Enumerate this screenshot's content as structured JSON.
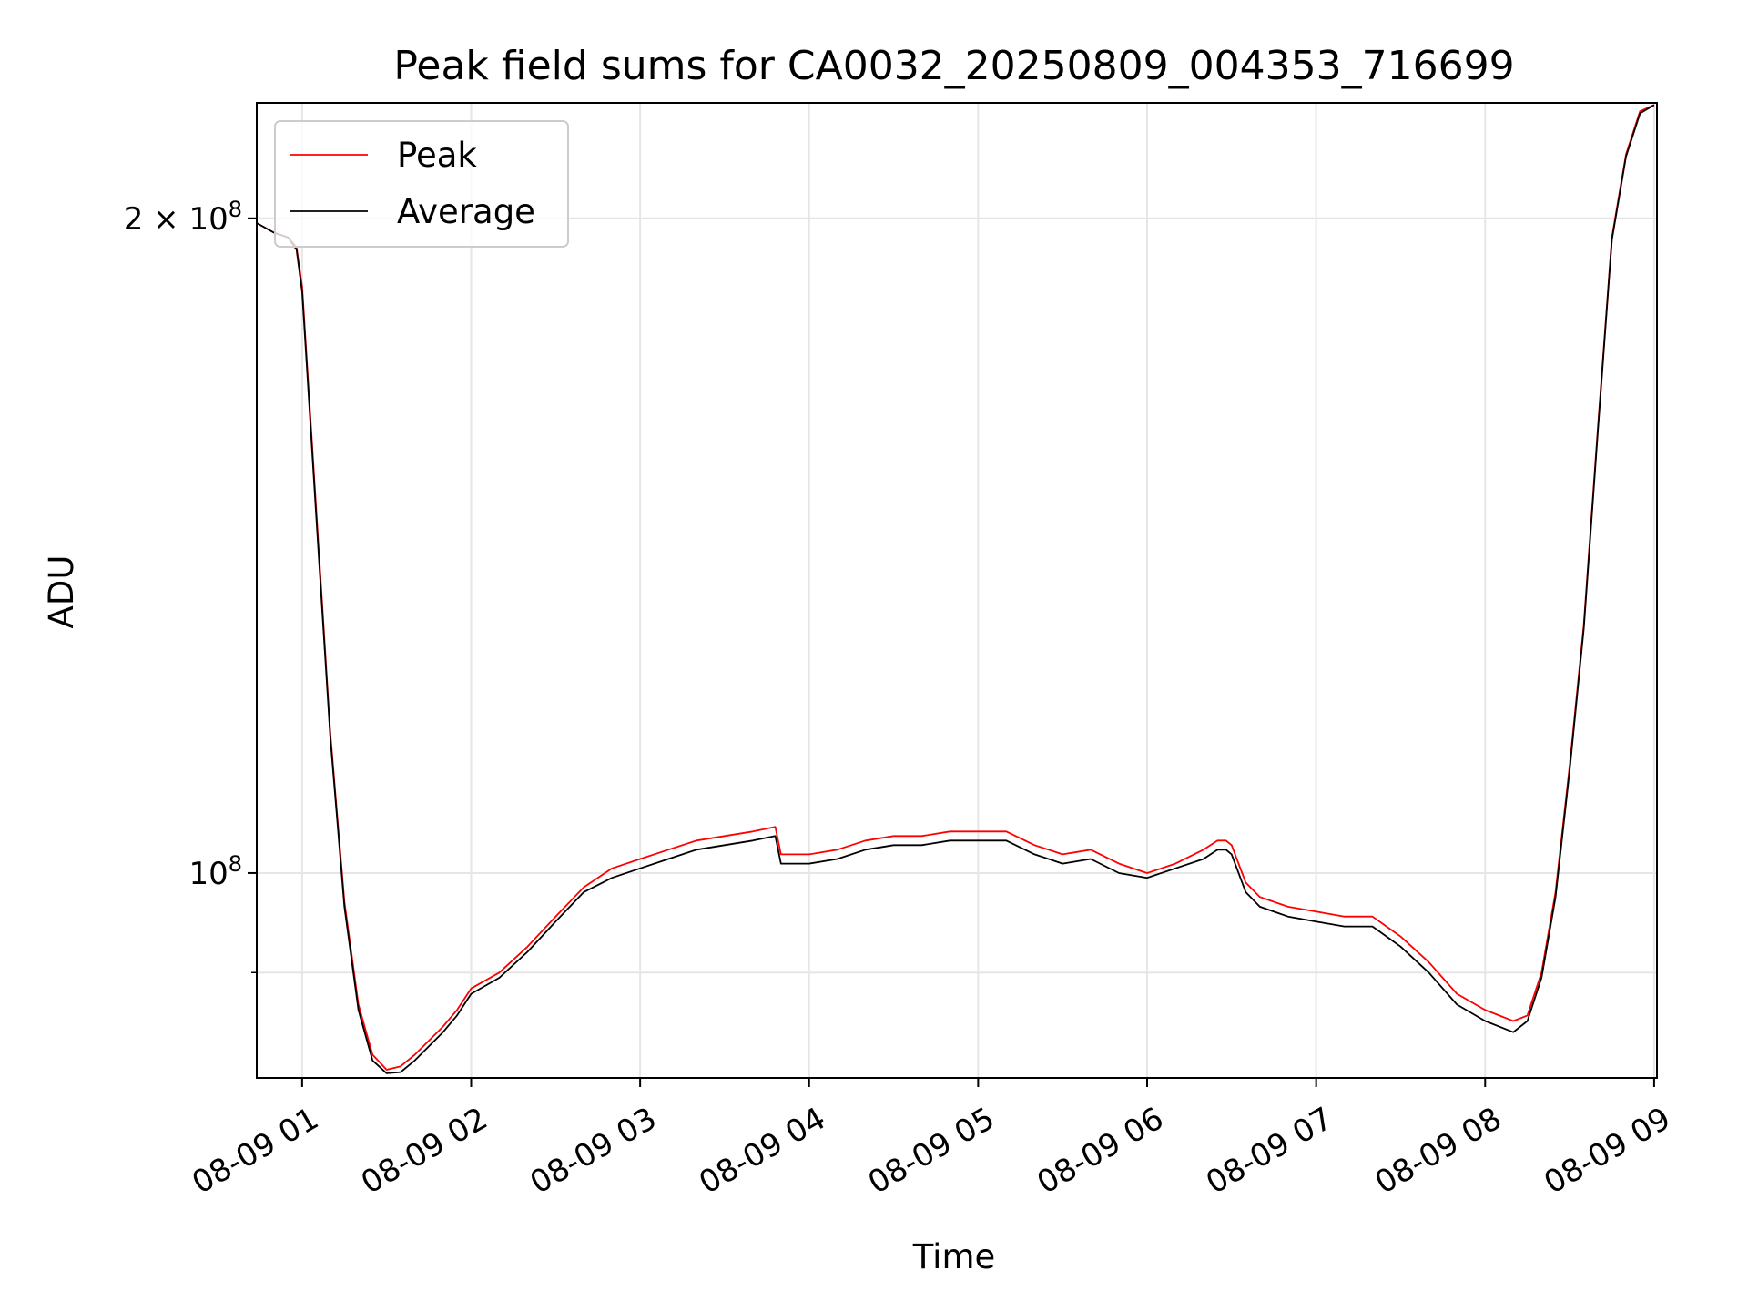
{
  "chart_data": {
    "type": "line",
    "title": "Peak field sums for CA0032_20250809_004353_716699",
    "xlabel": "Time",
    "ylabel": "ADU",
    "yscale": "log",
    "xlim": [
      "2025-08-09 00:43:53",
      "2025-08-09 09:01:00"
    ],
    "ylim": [
      80500000,
      226000000
    ],
    "x_ticks": [
      {
        "time": "2025-08-09 01:00",
        "label": "08-09 01"
      },
      {
        "time": "2025-08-09 02:00",
        "label": "08-09 02"
      },
      {
        "time": "2025-08-09 03:00",
        "label": "08-09 03"
      },
      {
        "time": "2025-08-09 04:00",
        "label": "08-09 04"
      },
      {
        "time": "2025-08-09 05:00",
        "label": "08-09 05"
      },
      {
        "time": "2025-08-09 06:00",
        "label": "08-09 06"
      },
      {
        "time": "2025-08-09 07:00",
        "label": "08-09 07"
      },
      {
        "time": "2025-08-09 08:00",
        "label": "08-09 08"
      },
      {
        "time": "2025-08-09 09:00",
        "label": "08-09 09"
      }
    ],
    "y_ticks_major": [
      {
        "value": 100000000,
        "base": "10",
        "exp": "8",
        "mantissa": ""
      },
      {
        "value": 200000000,
        "base": "10",
        "exp": "8",
        "mantissa": "2 × "
      }
    ],
    "y_ticks_minor": [
      90000000
    ],
    "grid": true,
    "legend_position": "upper-left",
    "series": [
      {
        "name": "Peak",
        "color": "#ff0000",
        "x": [
          "2025-08-09 00:43:53",
          "2025-08-09 00:50",
          "2025-08-09 00:55",
          "2025-08-09 00:58",
          "2025-08-09 01:00",
          "2025-08-09 01:05",
          "2025-08-09 01:10",
          "2025-08-09 01:15",
          "2025-08-09 01:20",
          "2025-08-09 01:25",
          "2025-08-09 01:30",
          "2025-08-09 01:35",
          "2025-08-09 01:40",
          "2025-08-09 01:50",
          "2025-08-09 01:55",
          "2025-08-09 02:00",
          "2025-08-09 02:10",
          "2025-08-09 02:20",
          "2025-08-09 02:30",
          "2025-08-09 02:40",
          "2025-08-09 02:50",
          "2025-08-09 03:00",
          "2025-08-09 03:10",
          "2025-08-09 03:20",
          "2025-08-09 03:30",
          "2025-08-09 03:40",
          "2025-08-09 03:48",
          "2025-08-09 03:50",
          "2025-08-09 04:00",
          "2025-08-09 04:10",
          "2025-08-09 04:20",
          "2025-08-09 04:30",
          "2025-08-09 04:40",
          "2025-08-09 04:50",
          "2025-08-09 05:00",
          "2025-08-09 05:10",
          "2025-08-09 05:20",
          "2025-08-09 05:30",
          "2025-08-09 05:40",
          "2025-08-09 05:50",
          "2025-08-09 06:00",
          "2025-08-09 06:10",
          "2025-08-09 06:20",
          "2025-08-09 06:25",
          "2025-08-09 06:28",
          "2025-08-09 06:30",
          "2025-08-09 06:35",
          "2025-08-09 06:40",
          "2025-08-09 06:50",
          "2025-08-09 07:00",
          "2025-08-09 07:10",
          "2025-08-09 07:20",
          "2025-08-09 07:30",
          "2025-08-09 07:40",
          "2025-08-09 07:50",
          "2025-08-09 08:00",
          "2025-08-09 08:05",
          "2025-08-09 08:10",
          "2025-08-09 08:15",
          "2025-08-09 08:20",
          "2025-08-09 08:25",
          "2025-08-09 08:30",
          "2025-08-09 08:35",
          "2025-08-09 08:40",
          "2025-08-09 08:45",
          "2025-08-09 08:50",
          "2025-08-09 08:55",
          "2025-08-09 09:00"
        ],
        "y": [
          199000000,
          197000000,
          196000000,
          194000000,
          186000000,
          147000000,
          116000000,
          97000000,
          87000000,
          82500000,
          81200000,
          81500000,
          82500000,
          85000000,
          86500000,
          88500000,
          90000000,
          92500000,
          95500000,
          98500000,
          100500000,
          101500000,
          102500000,
          103500000,
          104000000,
          104500000,
          105000000,
          102000000,
          102000000,
          102500000,
          103500000,
          104000000,
          104000000,
          104500000,
          104500000,
          104500000,
          103000000,
          102000000,
          102500000,
          101000000,
          100000000,
          101000000,
          102500000,
          103500000,
          103500000,
          103000000,
          99000000,
          97500000,
          96500000,
          96000000,
          95500000,
          95500000,
          93500000,
          91000000,
          88000000,
          86500000,
          86000000,
          85500000,
          86000000,
          90000000,
          98000000,
          112000000,
          130000000,
          160000000,
          196000000,
          214000000,
          224000000,
          225500000
        ]
      },
      {
        "name": "Average",
        "color": "#000000",
        "x": [
          "2025-08-09 00:43:53",
          "2025-08-09 00:50",
          "2025-08-09 00:55",
          "2025-08-09 00:58",
          "2025-08-09 01:00",
          "2025-08-09 01:05",
          "2025-08-09 01:10",
          "2025-08-09 01:15",
          "2025-08-09 01:20",
          "2025-08-09 01:25",
          "2025-08-09 01:30",
          "2025-08-09 01:35",
          "2025-08-09 01:40",
          "2025-08-09 01:50",
          "2025-08-09 01:55",
          "2025-08-09 02:00",
          "2025-08-09 02:10",
          "2025-08-09 02:20",
          "2025-08-09 02:30",
          "2025-08-09 02:40",
          "2025-08-09 02:50",
          "2025-08-09 03:00",
          "2025-08-09 03:10",
          "2025-08-09 03:20",
          "2025-08-09 03:30",
          "2025-08-09 03:40",
          "2025-08-09 03:48",
          "2025-08-09 03:50",
          "2025-08-09 04:00",
          "2025-08-09 04:10",
          "2025-08-09 04:20",
          "2025-08-09 04:30",
          "2025-08-09 04:40",
          "2025-08-09 04:50",
          "2025-08-09 05:00",
          "2025-08-09 05:10",
          "2025-08-09 05:20",
          "2025-08-09 05:30",
          "2025-08-09 05:40",
          "2025-08-09 05:50",
          "2025-08-09 06:00",
          "2025-08-09 06:10",
          "2025-08-09 06:20",
          "2025-08-09 06:25",
          "2025-08-09 06:28",
          "2025-08-09 06:30",
          "2025-08-09 06:35",
          "2025-08-09 06:40",
          "2025-08-09 06:50",
          "2025-08-09 07:00",
          "2025-08-09 07:10",
          "2025-08-09 07:20",
          "2025-08-09 07:30",
          "2025-08-09 07:40",
          "2025-08-09 07:50",
          "2025-08-09 08:00",
          "2025-08-09 08:05",
          "2025-08-09 08:10",
          "2025-08-09 08:15",
          "2025-08-09 08:20",
          "2025-08-09 08:25",
          "2025-08-09 08:30",
          "2025-08-09 08:35",
          "2025-08-09 08:40",
          "2025-08-09 08:45",
          "2025-08-09 08:50",
          "2025-08-09 08:55",
          "2025-08-09 09:00"
        ],
        "y": [
          199000000,
          197000000,
          196000000,
          193500000,
          185000000,
          146000000,
          115500000,
          96500000,
          86500000,
          82000000,
          80900000,
          81000000,
          82000000,
          84500000,
          86000000,
          88000000,
          89500000,
          92000000,
          95000000,
          98000000,
          99500000,
          100500000,
          101500000,
          102500000,
          103000000,
          103500000,
          104000000,
          101000000,
          101000000,
          101500000,
          102500000,
          103000000,
          103000000,
          103500000,
          103500000,
          103500000,
          102000000,
          101000000,
          101500000,
          100000000,
          99500000,
          100500000,
          101500000,
          102500000,
          102500000,
          102000000,
          98000000,
          96500000,
          95500000,
          95000000,
          94500000,
          94500000,
          92500000,
          90000000,
          87000000,
          85500000,
          85000000,
          84500000,
          85500000,
          89500000,
          97500000,
          111500000,
          129500000,
          159500000,
          195500000,
          213500000,
          223500000,
          225500000
        ]
      }
    ]
  }
}
